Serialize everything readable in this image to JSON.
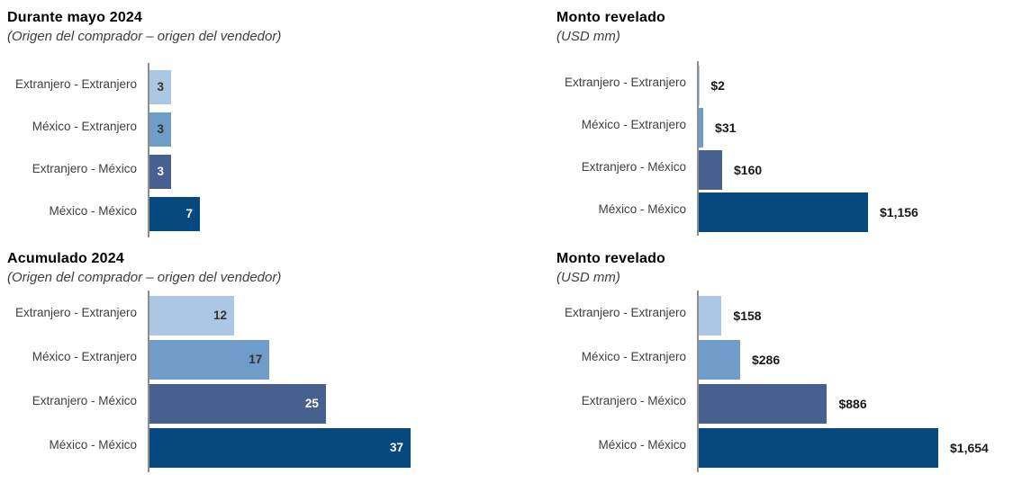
{
  "page": {
    "background": "#ffffff"
  },
  "palette": {
    "bar_colors": [
      "#abc7e3",
      "#6f9cc9",
      "#46618f",
      "#05497f"
    ],
    "axis_color": "#8e8e8e",
    "category_label_color": "#3f3f3f",
    "value_outside_color": "#1a1a1a",
    "inside_label_dark_text": "#333333",
    "inside_label_light_text": "#ffffff"
  },
  "chart_data": [
    {
      "id": "durante-mayo-2024-operaciones",
      "type": "bar",
      "orientation": "horizontal",
      "title": "Durante mayo 2024",
      "subtitle": "(Origen del comprador – origen del vendedor)",
      "categories": [
        "Extranjero - Extranjero",
        "México - Extranjero",
        "Extranjero - México",
        "México - México"
      ],
      "values": [
        3,
        3,
        3,
        7
      ],
      "value_labels": [
        "3",
        "3",
        "3",
        "7"
      ],
      "value_label_position": "inside",
      "xlim": [
        0,
        7
      ],
      "grid": false,
      "legend": false
    },
    {
      "id": "monto-revelado-mayo-2024",
      "type": "bar",
      "orientation": "horizontal",
      "title": "Monto revelado",
      "subtitle": "(USD mm)",
      "categories": [
        "Extranjero - Extranjero",
        "México - Extranjero",
        "Extranjero - México",
        "México - México"
      ],
      "values": [
        2,
        31,
        160,
        1156
      ],
      "value_labels": [
        "$2",
        "$31",
        "$160",
        "$1,156"
      ],
      "value_label_position": "outside",
      "xlim": [
        0,
        1156
      ],
      "grid": false,
      "legend": false
    },
    {
      "id": "acumulado-2024-operaciones",
      "type": "bar",
      "orientation": "horizontal",
      "title": "Acumulado 2024",
      "subtitle": "(Origen del comprador – origen del vendedor)",
      "categories": [
        "Extranjero - Extranjero",
        "México - Extranjero",
        "Extranjero - México",
        "México - México"
      ],
      "values": [
        12,
        17,
        25,
        37
      ],
      "value_labels": [
        "12",
        "17",
        "25",
        "37"
      ],
      "value_label_position": "inside",
      "xlim": [
        0,
        37
      ],
      "grid": false,
      "legend": false
    },
    {
      "id": "monto-revelado-acumulado-2024",
      "type": "bar",
      "orientation": "horizontal",
      "title": "Monto revelado",
      "subtitle": "(USD mm)",
      "categories": [
        "Extranjero - Extranjero",
        "México - Extranjero",
        "Extranjero - México",
        "México - México"
      ],
      "values": [
        158,
        286,
        886,
        1654
      ],
      "value_labels": [
        "$158",
        "$286",
        "$886",
        "$1,654"
      ],
      "value_label_position": "outside",
      "xlim": [
        0,
        1654
      ],
      "grid": false,
      "legend": false
    }
  ]
}
